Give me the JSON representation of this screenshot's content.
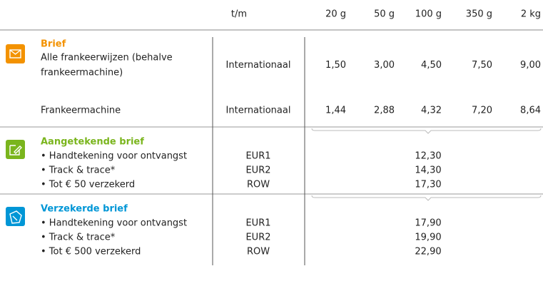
{
  "header": {
    "zone_label": "t/m",
    "weights": [
      "20 g",
      "50 g",
      "100 g",
      "350 g",
      "2 kg"
    ]
  },
  "sections": [
    {
      "title": "Brief",
      "rows": [
        {
          "description": [
            "Alle frankeerwijzen (behalve",
            "frankeermachine)"
          ],
          "zone": "Internationaal",
          "prices": [
            "1,50",
            "3,00",
            "4,50",
            "7,50",
            "9,00"
          ]
        },
        {
          "description": [
            "Frankeermachine"
          ],
          "zone": "Internationaal",
          "prices": [
            "1,44",
            "2,88",
            "4,32",
            "7,20",
            "8,64"
          ]
        }
      ]
    },
    {
      "title": "Aangetekende brief",
      "items": [
        {
          "text": "• Handtekening voor ontvangst",
          "zone": "EUR1",
          "price": "12,30"
        },
        {
          "text": "• Track & trace*",
          "zone": "EUR2",
          "price": "14,30"
        },
        {
          "text": "• Tot € 50 verzekerd",
          "zone": "ROW",
          "price": "17,30"
        }
      ]
    },
    {
      "title": "Verzekerde brief",
      "items": [
        {
          "text": "• Handtekening voor ontvangst",
          "zone": "EUR1",
          "price": "17,90"
        },
        {
          "text": "• Track & trace*",
          "zone": "EUR2",
          "price": "19,90"
        },
        {
          "text": "• Tot € 500 verzekerd",
          "zone": "ROW",
          "price": "22,90"
        }
      ]
    }
  ]
}
